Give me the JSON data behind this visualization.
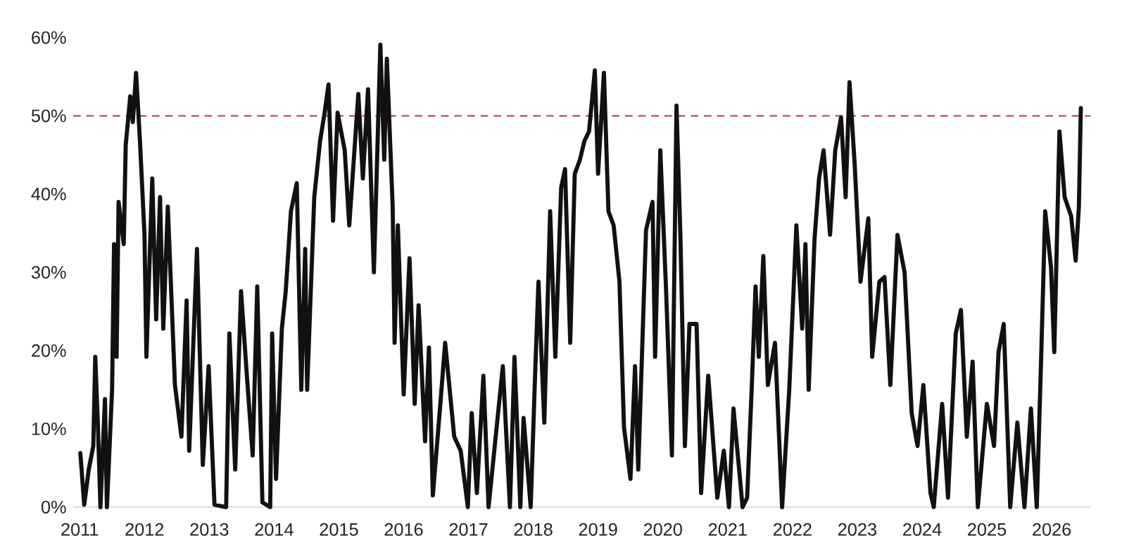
{
  "chart_data": {
    "type": "line",
    "xlim": [
      2010.9,
      2026.6
    ],
    "ylim": [
      0,
      60
    ],
    "xticks": [
      2011,
      2012,
      2013,
      2014,
      2015,
      2016,
      2017,
      2018,
      2019,
      2020,
      2021,
      2022,
      2023,
      2024,
      2025,
      2026
    ],
    "yticks": [
      {
        "value": 0,
        "label": "0%"
      },
      {
        "value": 10,
        "label": "10%"
      },
      {
        "value": 20,
        "label": "20%"
      },
      {
        "value": 30,
        "label": "30%"
      },
      {
        "value": 40,
        "label": "40%"
      },
      {
        "value": 50,
        "label": "50%"
      },
      {
        "value": 60,
        "label": "60%"
      }
    ],
    "grid": false,
    "marker": "none",
    "line_style": "solid",
    "ref_lines": [
      {
        "axis": "y",
        "value": 50,
        "color": "#b03a48",
        "line_style": "dashed"
      }
    ],
    "series": [
      {
        "color": "#111111",
        "x": [
          2011.01,
          2011.07,
          2011.14,
          2011.21,
          2011.24,
          2011.28,
          2011.32,
          2011.39,
          2011.42,
          2011.5,
          2011.53,
          2011.57,
          2011.6,
          2011.68,
          2011.71,
          2011.78,
          2011.82,
          2011.87,
          2011.93,
          2012.0,
          2012.03,
          2012.12,
          2012.18,
          2012.24,
          2012.29,
          2012.36,
          2012.47,
          2012.57,
          2012.65,
          2012.69,
          2012.81,
          2012.9,
          2012.99,
          2013.08,
          2013.26,
          2013.31,
          2013.4,
          2013.49,
          2013.58,
          2013.67,
          2013.74,
          2013.82,
          2013.94,
          2013.97,
          2014.03,
          2014.12,
          2014.18,
          2014.26,
          2014.35,
          2014.42,
          2014.48,
          2014.51,
          2014.62,
          2014.71,
          2014.78,
          2014.84,
          2014.91,
          2014.98,
          2015.09,
          2015.16,
          2015.3,
          2015.37,
          2015.45,
          2015.54,
          2015.64,
          2015.7,
          2015.74,
          2015.83,
          2015.86,
          2015.91,
          2016.0,
          2016.09,
          2016.17,
          2016.23,
          2016.33,
          2016.39,
          2016.45,
          2016.56,
          2016.64,
          2016.78,
          2016.88,
          2016.99,
          2017.05,
          2017.13,
          2017.23,
          2017.31,
          2017.53,
          2017.64,
          2017.71,
          2017.8,
          2017.85,
          2017.96,
          2018.03,
          2018.08,
          2018.17,
          2018.26,
          2018.34,
          2018.43,
          2018.49,
          2018.57,
          2018.64,
          2018.72,
          2018.79,
          2018.86,
          2018.95,
          2019.0,
          2019.09,
          2019.16,
          2019.24,
          2019.33,
          2019.4,
          2019.5,
          2019.57,
          2019.62,
          2019.74,
          2019.84,
          2019.88,
          2019.96,
          2020.05,
          2020.14,
          2020.21,
          2020.27,
          2020.34,
          2020.41,
          2020.52,
          2020.59,
          2020.7,
          2020.84,
          2020.94,
          2021.02,
          2021.09,
          2021.23,
          2021.3,
          2021.37,
          2021.43,
          2021.48,
          2021.55,
          2021.62,
          2021.73,
          2021.84,
          2021.95,
          2022.06,
          2022.15,
          2022.2,
          2022.25,
          2022.34,
          2022.41,
          2022.48,
          2022.58,
          2022.66,
          2022.75,
          2022.82,
          2022.88,
          2022.96,
          2023.05,
          2023.17,
          2023.23,
          2023.34,
          2023.42,
          2023.51,
          2023.62,
          2023.73,
          2023.84,
          2023.93,
          2024.02,
          2024.13,
          2024.18,
          2024.31,
          2024.4,
          2024.52,
          2024.6,
          2024.69,
          2024.78,
          2024.86,
          2025.0,
          2025.11,
          2025.18,
          2025.26,
          2025.36,
          2025.47,
          2025.58,
          2025.68,
          2025.77,
          2025.84,
          2025.9,
          2025.99,
          2026.04,
          2026.12,
          2026.2,
          2026.3,
          2026.37,
          2026.42,
          2026.45
        ],
        "values": [
          6.9,
          0.3,
          4.8,
          7.8,
          19.2,
          10.8,
          0,
          13.8,
          0,
          15,
          33.6,
          19.2,
          39,
          33.6,
          46.2,
          52.5,
          49.2,
          55.5,
          46.8,
          34.8,
          19.2,
          42,
          24,
          39.6,
          22.8,
          38.4,
          15.6,
          9,
          26.4,
          7.2,
          33,
          5.4,
          18,
          0.3,
          0,
          22.2,
          4.8,
          27.6,
          16.8,
          6.6,
          28.2,
          0.6,
          0,
          22.2,
          3.6,
          22.8,
          27.6,
          37.8,
          41.4,
          15,
          33,
          15,
          39.6,
          46.8,
          50.4,
          54,
          36.6,
          50.4,
          45.6,
          36,
          52.8,
          42,
          53.4,
          30,
          59.1,
          44.4,
          57.3,
          38.4,
          21,
          36,
          14.4,
          31.8,
          13.2,
          25.8,
          8.4,
          20.4,
          1.5,
          12.6,
          21,
          9,
          7.2,
          0,
          12,
          1.8,
          16.8,
          0,
          18,
          0,
          19.2,
          0,
          11.4,
          0,
          17.4,
          28.8,
          10.8,
          37.8,
          19.2,
          40.8,
          43.2,
          21,
          42.6,
          44.4,
          46.8,
          48,
          55.8,
          42.6,
          55.5,
          37.8,
          36,
          28.8,
          10.2,
          3.6,
          18,
          4.8,
          35.4,
          39,
          19.2,
          45.6,
          27.6,
          6.6,
          51.3,
          34.8,
          7.8,
          23.4,
          23.4,
          1.8,
          16.8,
          1.2,
          7.2,
          0,
          12.6,
          0,
          1.2,
          15,
          28.2,
          19.2,
          32.1,
          15.6,
          21,
          0,
          15,
          36,
          22.8,
          33.6,
          15,
          34.2,
          42,
          45.6,
          34.8,
          45.6,
          49.8,
          39.6,
          54.3,
          43.8,
          28.8,
          36.9,
          19.2,
          28.8,
          29.4,
          15.6,
          34.8,
          30,
          12,
          7.8,
          15.6,
          1.8,
          0,
          13.2,
          1.2,
          22.2,
          25.2,
          9,
          18.6,
          0,
          13.2,
          7.8,
          19.8,
          23.4,
          0,
          10.8,
          0,
          12.6,
          0,
          19.8,
          37.8,
          30.6,
          19.8,
          48,
          39.6,
          37.2,
          31.5,
          38.4,
          51
        ]
      }
    ]
  }
}
